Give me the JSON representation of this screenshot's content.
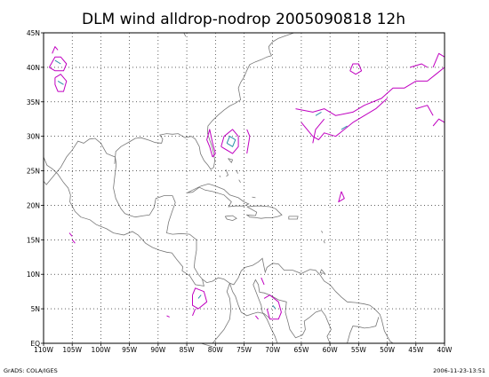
{
  "title": "DLM wind alldrop-nodrop 2005090818 12h",
  "footer_left": "GrADS: COLA/IGES",
  "footer_right": "2006-11-23-13:51",
  "axes": {
    "lon_min": -110,
    "lon_max": -40,
    "lat_min": 0,
    "lat_max": 45,
    "x_ticks": [
      "110W",
      "105W",
      "100W",
      "95W",
      "90W",
      "85W",
      "80W",
      "75W",
      "70W",
      "65W",
      "60W",
      "55W",
      "50W",
      "45W",
      "40W"
    ],
    "y_ticks": [
      "EQ",
      "5N",
      "10N",
      "15N",
      "20N",
      "25N",
      "30N",
      "35N",
      "40N",
      "45N"
    ],
    "grid": "dotted"
  },
  "colors": {
    "coast": "#777777",
    "contour_magenta": "#c000c0",
    "contour_blue": "#2a8fa8",
    "frame": "#000000"
  },
  "contours": {
    "magenta": [
      [
        [
          -108.5,
          42
        ],
        [
          -108,
          43
        ],
        [
          -107.5,
          42.5
        ]
      ],
      [
        [
          -109,
          40
        ],
        [
          -108,
          41.5
        ],
        [
          -107,
          41.5
        ],
        [
          -106,
          40.5
        ],
        [
          -106.5,
          39.5
        ],
        [
          -108,
          39.5
        ],
        [
          -109,
          40
        ]
      ],
      [
        [
          -108,
          38.5
        ],
        [
          -107,
          39
        ],
        [
          -106,
          38
        ],
        [
          -106.5,
          36.5
        ],
        [
          -107.5,
          36.5
        ],
        [
          -108,
          37.5
        ],
        [
          -108,
          38.5
        ]
      ],
      [
        [
          -105.5,
          16
        ],
        [
          -105,
          15.5
        ]
      ],
      [
        [
          -105,
          15
        ],
        [
          -104.5,
          14.5
        ]
      ],
      [
        [
          -80.5,
          27
        ],
        [
          -81,
          28.5
        ],
        [
          -81.5,
          29.5
        ],
        [
          -81,
          31
        ],
        [
          -80.5,
          29
        ],
        [
          -80,
          27.5
        ],
        [
          -80.5,
          27
        ]
      ],
      [
        [
          -79,
          28.5
        ],
        [
          -78.5,
          30
        ],
        [
          -77,
          31
        ],
        [
          -76,
          30
        ],
        [
          -76,
          28.5
        ],
        [
          -77,
          27.5
        ],
        [
          -79,
          28.5
        ]
      ],
      [
        [
          -74.5,
          31
        ],
        [
          -74,
          30
        ],
        [
          -74.5,
          27.5
        ]
      ],
      [
        [
          -66,
          34
        ],
        [
          -63,
          33.5
        ],
        [
          -61,
          34
        ],
        [
          -59,
          33
        ],
        [
          -56,
          33.5
        ],
        [
          -54,
          34.5
        ],
        [
          -51,
          35.5
        ],
        [
          -49,
          37
        ],
        [
          -47,
          37
        ],
        [
          -45,
          38
        ],
        [
          -43,
          38
        ],
        [
          -41.5,
          39
        ],
        [
          -40,
          40
        ]
      ],
      [
        [
          -65,
          32
        ],
        [
          -63,
          30
        ],
        [
          -62,
          29.5
        ],
        [
          -61,
          30.5
        ],
        [
          -59,
          30
        ],
        [
          -57.5,
          31
        ],
        [
          -56,
          32
        ],
        [
          -54,
          33
        ],
        [
          -52,
          34
        ],
        [
          -50,
          35.5
        ]
      ],
      [
        [
          -63,
          29
        ],
        [
          -62.5,
          31
        ],
        [
          -61,
          32.5
        ]
      ],
      [
        [
          -56.5,
          39.5
        ],
        [
          -56,
          40.5
        ],
        [
          -55,
          40.5
        ],
        [
          -54.5,
          39.5
        ],
        [
          -55.5,
          39
        ],
        [
          -56.5,
          39.5
        ]
      ],
      [
        [
          -46,
          40
        ],
        [
          -44,
          40.5
        ],
        [
          -43,
          40
        ]
      ],
      [
        [
          -42,
          40
        ],
        [
          -41,
          42
        ],
        [
          -40,
          41.5
        ]
      ],
      [
        [
          -45,
          34
        ],
        [
          -43,
          34.5
        ],
        [
          -42,
          33
        ]
      ],
      [
        [
          -42,
          31.5
        ],
        [
          -41,
          32.5
        ],
        [
          -40,
          32
        ]
      ],
      [
        [
          -58,
          22
        ],
        [
          -57.5,
          21
        ],
        [
          -58.5,
          20.5
        ],
        [
          -58,
          22
        ]
      ],
      [
        [
          -84,
          7
        ],
        [
          -83.5,
          8
        ],
        [
          -82,
          7.5
        ],
        [
          -81.5,
          6
        ],
        [
          -83,
          5
        ],
        [
          -84,
          5.5
        ],
        [
          -84,
          7
        ]
      ],
      [
        [
          -84,
          4
        ],
        [
          -83.5,
          5
        ]
      ],
      [
        [
          -71.5,
          6.5
        ],
        [
          -70.5,
          7
        ],
        [
          -69,
          6
        ],
        [
          -68.5,
          4.5
        ],
        [
          -69,
          3.5
        ],
        [
          -70.5,
          3.5
        ],
        [
          -71,
          5
        ]
      ],
      [
        [
          -73,
          4
        ],
        [
          -72.5,
          3.5
        ]
      ],
      [
        [
          -72,
          9.5
        ],
        [
          -71.5,
          8.5
        ]
      ],
      [
        [
          -88.5,
          4
        ],
        [
          -88,
          3.8
        ]
      ]
    ],
    "blue": [
      [
        [
          -108,
          41
        ],
        [
          -107,
          40.5
        ]
      ],
      [
        [
          -107.5,
          38
        ],
        [
          -106.5,
          37.5
        ]
      ],
      [
        [
          -78,
          29
        ],
        [
          -77.5,
          30
        ],
        [
          -76.5,
          29.5
        ],
        [
          -77,
          28.5
        ],
        [
          -78,
          29
        ]
      ],
      [
        [
          -62.5,
          33
        ],
        [
          -61.5,
          33.5
        ]
      ],
      [
        [
          -58,
          31
        ],
        [
          -57,
          31.5
        ]
      ],
      [
        [
          -83,
          6.5
        ],
        [
          -82.5,
          7
        ]
      ],
      [
        [
          -70,
          5.5
        ],
        [
          -69.5,
          5
        ]
      ]
    ]
  }
}
